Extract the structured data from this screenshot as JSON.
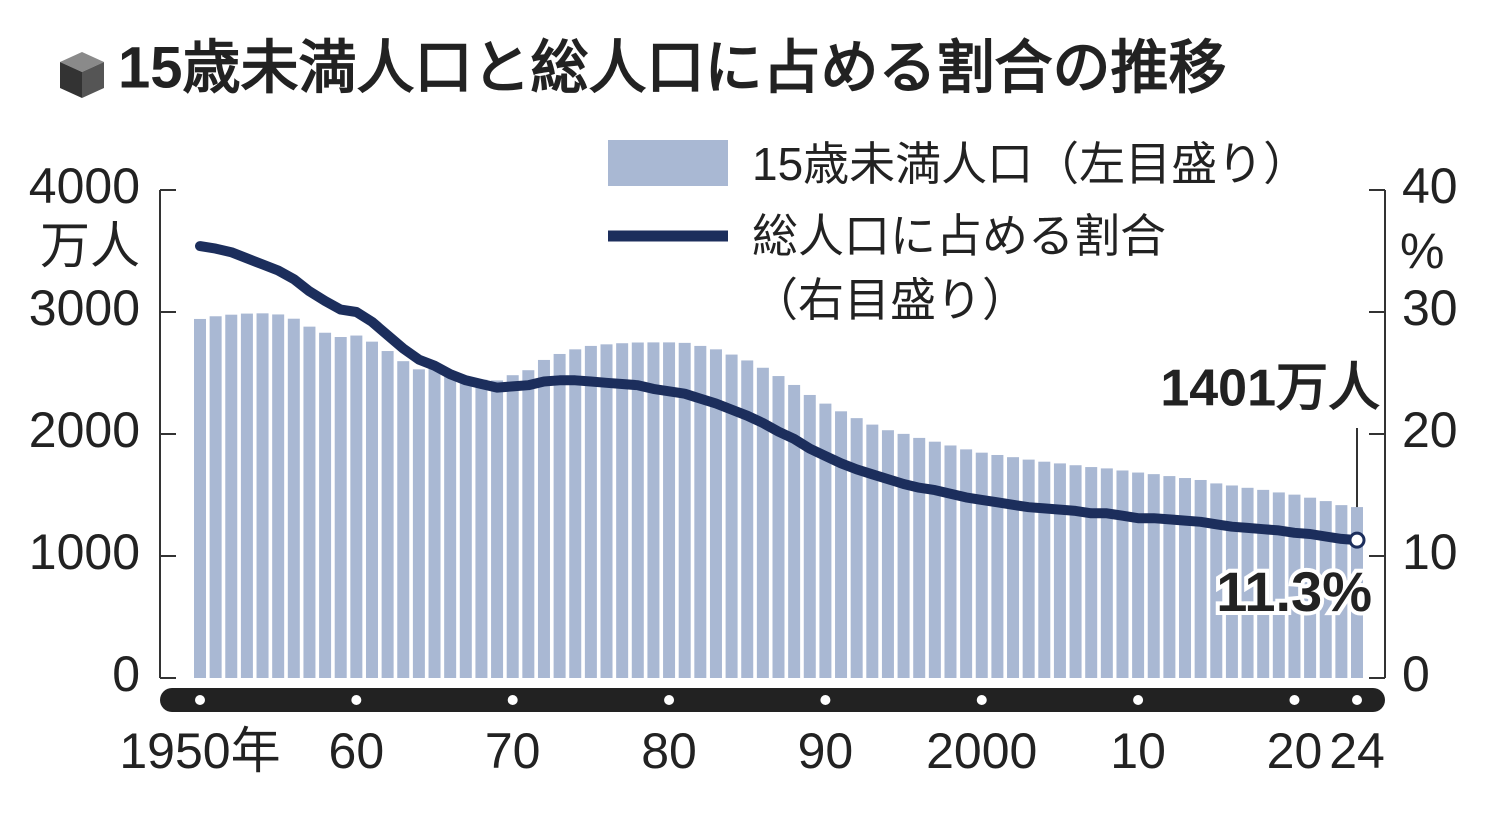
{
  "chart_data": {
    "type": "bar",
    "title": "15歳未満人口と総人口に占める割合の推移",
    "ylabel": "万人",
    "y2label": "%",
    "x": [
      1950,
      1951,
      1952,
      1953,
      1954,
      1955,
      1956,
      1957,
      1958,
      1959,
      1960,
      1961,
      1962,
      1963,
      1964,
      1965,
      1966,
      1967,
      1968,
      1969,
      1970,
      1971,
      1972,
      1973,
      1974,
      1975,
      1976,
      1977,
      1978,
      1979,
      1980,
      1981,
      1982,
      1983,
      1984,
      1985,
      1986,
      1987,
      1988,
      1989,
      1990,
      1991,
      1992,
      1993,
      1994,
      1995,
      1996,
      1997,
      1998,
      1999,
      2000,
      2001,
      2002,
      2003,
      2004,
      2005,
      2006,
      2007,
      2008,
      2009,
      2010,
      2011,
      2012,
      2013,
      2014,
      2015,
      2016,
      2017,
      2018,
      2019,
      2020,
      2021,
      2022,
      2023,
      2024
    ],
    "series": [
      {
        "name": "15歳未満人口（左目盛り）",
        "type": "bar",
        "color": "#a9b8d3",
        "values": [
          2943,
          2965,
          2978,
          2987,
          2989,
          2980,
          2945,
          2880,
          2830,
          2795,
          2807,
          2757,
          2680,
          2597,
          2530,
          2553,
          2490,
          2464,
          2445,
          2439,
          2482,
          2523,
          2607,
          2656,
          2694,
          2722,
          2735,
          2744,
          2750,
          2751,
          2751,
          2747,
          2722,
          2694,
          2651,
          2603,
          2543,
          2475,
          2402,
          2320,
          2249,
          2186,
          2130,
          2077,
          2031,
          2001,
          1968,
          1937,
          1906,
          1874,
          1847,
          1828,
          1810,
          1790,
          1773,
          1759,
          1744,
          1729,
          1718,
          1701,
          1684,
          1671,
          1655,
          1639,
          1623,
          1595,
          1578,
          1559,
          1542,
          1521,
          1503,
          1478,
          1450,
          1417,
          1401
        ],
        "value_labels": [
          null,
          null,
          null,
          null,
          null,
          null,
          null,
          null,
          null,
          null,
          null,
          null,
          null,
          null,
          null,
          null,
          null,
          null,
          null,
          null,
          null,
          null,
          null,
          null,
          null,
          null,
          null,
          null,
          null,
          null,
          null,
          null,
          null,
          null,
          null,
          null,
          null,
          null,
          null,
          null,
          null,
          null,
          null,
          null,
          null,
          null,
          null,
          null,
          null,
          null,
          null,
          null,
          null,
          null,
          null,
          null,
          null,
          null,
          null,
          null,
          null,
          null,
          null,
          null,
          null,
          null,
          null,
          null,
          null,
          null,
          null,
          null,
          null,
          null,
          "1401万人"
        ]
      },
      {
        "name": "総人口に占める割合（右目盛り）",
        "type": "line",
        "axis": "y2",
        "color": "#1c2e5c",
        "values": [
          35.4,
          35.2,
          34.9,
          34.4,
          33.9,
          33.4,
          32.7,
          31.7,
          30.9,
          30.2,
          30.0,
          29.2,
          28.1,
          27.0,
          26.1,
          25.6,
          24.9,
          24.4,
          24.1,
          23.8,
          23.9,
          24.0,
          24.3,
          24.4,
          24.4,
          24.3,
          24.2,
          24.1,
          24.0,
          23.7,
          23.5,
          23.3,
          22.9,
          22.5,
          22.0,
          21.5,
          20.9,
          20.2,
          19.6,
          18.8,
          18.2,
          17.6,
          17.1,
          16.7,
          16.3,
          15.9,
          15.6,
          15.4,
          15.1,
          14.8,
          14.6,
          14.4,
          14.2,
          14.0,
          13.9,
          13.8,
          13.7,
          13.5,
          13.5,
          13.3,
          13.1,
          13.1,
          13.0,
          12.9,
          12.8,
          12.6,
          12.4,
          12.3,
          12.2,
          12.1,
          11.9,
          11.8,
          11.6,
          11.4,
          11.3
        ],
        "value_labels": [
          null,
          null,
          null,
          null,
          null,
          null,
          null,
          null,
          null,
          null,
          null,
          null,
          null,
          null,
          null,
          null,
          null,
          null,
          null,
          null,
          null,
          null,
          null,
          null,
          null,
          null,
          null,
          null,
          null,
          null,
          null,
          null,
          null,
          null,
          null,
          null,
          null,
          null,
          null,
          null,
          null,
          null,
          null,
          null,
          null,
          null,
          null,
          null,
          null,
          null,
          null,
          null,
          null,
          null,
          null,
          null,
          null,
          null,
          null,
          null,
          null,
          null,
          null,
          null,
          null,
          null,
          null,
          null,
          null,
          null,
          null,
          null,
          null,
          null,
          "11.3%"
        ]
      }
    ],
    "xlim": [
      1950,
      2024
    ],
    "xticks": [
      {
        "value": 1950,
        "label": "1950年"
      },
      {
        "value": 1960,
        "label": "60"
      },
      {
        "value": 1970,
        "label": "70"
      },
      {
        "value": 1980,
        "label": "80"
      },
      {
        "value": 1990,
        "label": "90"
      },
      2000,
      {
        "value": 2010,
        "label": "10"
      },
      {
        "value": 2020,
        "label": "20"
      },
      {
        "value": 2024,
        "label": "24"
      }
    ],
    "ylim": [
      0,
      4000
    ],
    "yticks": [
      0,
      1000,
      2000,
      3000,
      4000
    ],
    "y2lim": [
      0,
      40
    ],
    "y2ticks": [
      0,
      10,
      20,
      30,
      40
    ]
  }
}
